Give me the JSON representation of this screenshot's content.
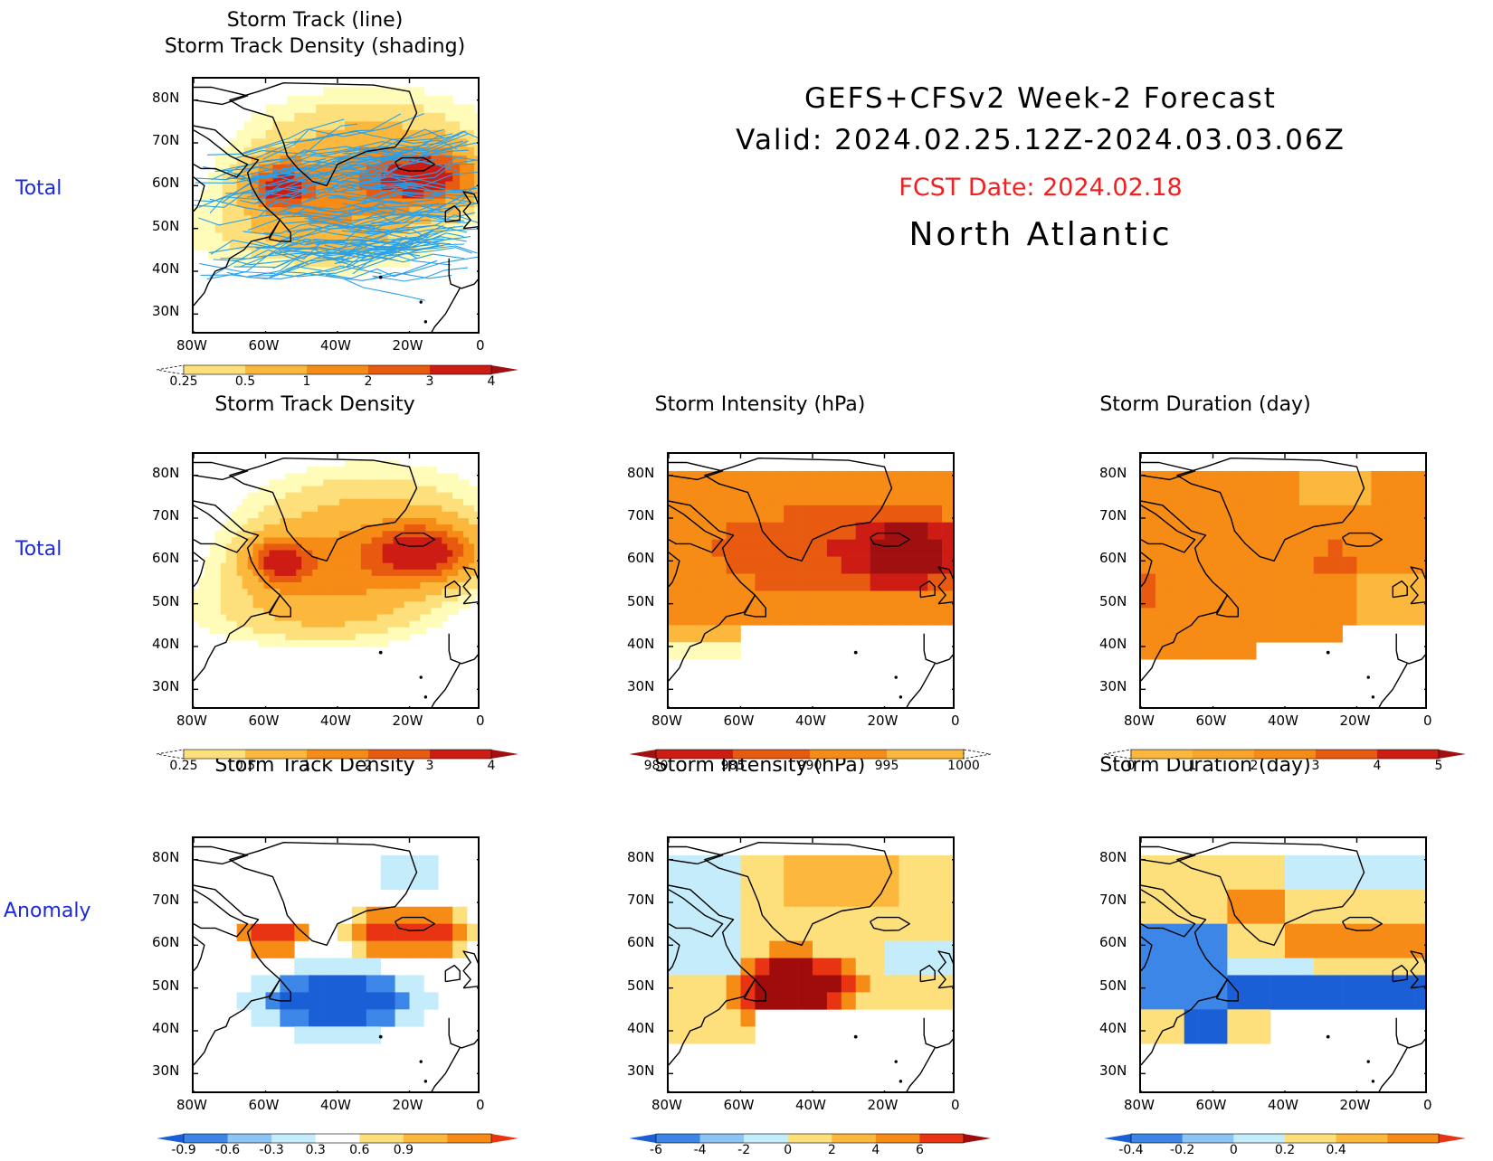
{
  "header": {
    "title": "GEFS+CFSv2 Week-2 Forecast",
    "valid": "Valid: 2024.02.25.12Z-2024.03.03.06Z",
    "fcst_date": "FCST Date: 2024.02.18",
    "region": "North Atlantic"
  },
  "row_labels": [
    "Total",
    "Total",
    "Anomaly"
  ],
  "axes": {
    "lat_labels": [
      "80N",
      "70N",
      "60N",
      "50N",
      "40N",
      "30N"
    ],
    "lon_labels": [
      "80W",
      "60W",
      "40W",
      "20W",
      "0"
    ]
  },
  "panels": [
    {
      "id": "track-lines",
      "title1": "Storm Track (line)",
      "title2": "Storm Track Density (shading)",
      "colorbar": "density"
    },
    {
      "id": "density-total",
      "title1": "Storm Track Density",
      "colorbar": "density"
    },
    {
      "id": "intensity-total",
      "title1": "Storm Intensity (hPa)",
      "colorbar": "intensity"
    },
    {
      "id": "duration-total",
      "title1": "Storm Duration (day)",
      "colorbar": "duration"
    },
    {
      "id": "density-anom",
      "title1": "Storm Track Density",
      "colorbar": "density_anom"
    },
    {
      "id": "intensity-anom",
      "title1": "Storm Intensity (hPa)",
      "colorbar": "intensity_anom"
    },
    {
      "id": "duration-anom",
      "title1": "Storm Duration (day)",
      "colorbar": "duration_anom"
    }
  ],
  "colorbars": {
    "density": {
      "labels": [
        "0.25",
        "0.5",
        "1",
        "2",
        "3",
        "4"
      ],
      "colors": [
        "#fffbb8",
        "#fde07c",
        "#fbb83c",
        "#f68b16",
        "#e85a10",
        "#cc1c14",
        "#a01010"
      ],
      "open_low": true
    },
    "intensity": {
      "labels": [
        "980",
        "985",
        "990",
        "995",
        "1000"
      ],
      "colors": [
        "#a01010",
        "#cc1c14",
        "#e85a10",
        "#f68b16",
        "#fbb83c",
        "#fffbb8"
      ],
      "open_high": true
    },
    "duration": {
      "labels": [
        "0",
        "1",
        "2",
        "3",
        "4",
        "5"
      ],
      "colors": [
        "#fffbb8",
        "#fbb83c",
        "#f8a52a",
        "#f68b16",
        "#e85a10",
        "#cc1c14",
        "#a01010"
      ],
      "open_low": true
    },
    "density_anom": {
      "labels": [
        "-0.9",
        "-0.6",
        "-0.3",
        "0.3",
        "0.6",
        "0.9"
      ],
      "colors": [
        "#1b5fd6",
        "#3c86e8",
        "#8cc4f4",
        "#c4ecfa",
        "#ffffff",
        "#fde07c",
        "#fbb83c",
        "#f68b16",
        "#e83412"
      ]
    },
    "intensity_anom": {
      "labels": [
        "-6",
        "-4",
        "-2",
        "0",
        "2",
        "4",
        "6"
      ],
      "colors": [
        "#1b5fd6",
        "#3c86e8",
        "#8cc4f4",
        "#c4ecfa",
        "#fde07c",
        "#fbb83c",
        "#f68b16",
        "#e83412",
        "#a00c0c"
      ]
    },
    "duration_anom": {
      "labels": [
        "-0.4",
        "-0.2",
        "0",
        "0.2",
        "0.4"
      ],
      "colors": [
        "#1b5fd6",
        "#3c86e8",
        "#8cc4f4",
        "#c4ecfa",
        "#fde07c",
        "#fbb83c",
        "#f68b16",
        "#e83412"
      ]
    }
  }
}
